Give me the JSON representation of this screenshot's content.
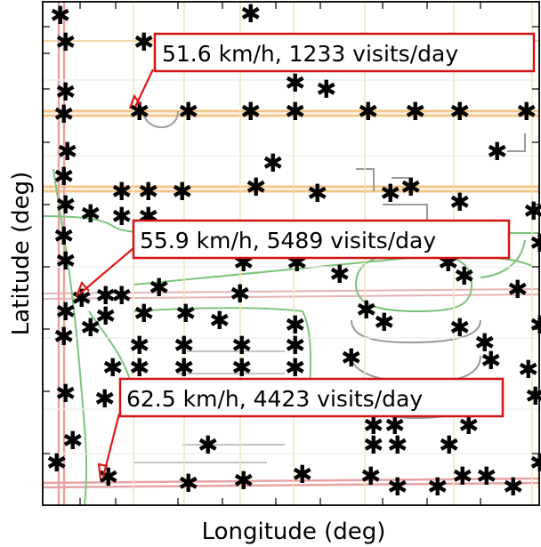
{
  "axes": {
    "xlabel": "Longitude (deg)",
    "ylabel": "Latitude (deg)"
  },
  "callouts": [
    {
      "text": "51.6 km/h, 1233 visits/day"
    },
    {
      "text": "55.9 km/h, 5489 visits/day"
    },
    {
      "text": "62.5 km/h, 4423 visits/day"
    }
  ],
  "colors": {
    "highway": "#f4c68a",
    "freeway": "#e7a3a3",
    "ramp": "#7cc47a",
    "street": "#9a9a9a",
    "callout_border": "#d21414",
    "arrow": "#e01818",
    "marker": "#000000"
  },
  "marker_symbol": "✱"
}
